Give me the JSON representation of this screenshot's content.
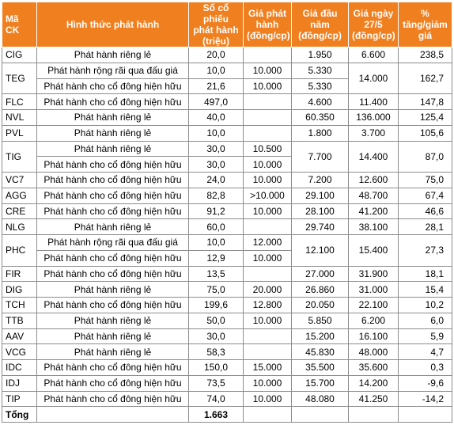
{
  "headers": {
    "code": "Mã CK",
    "method": "Hình thức phát hành",
    "shares": "Số cổ phiếu phát hành (triệu)",
    "issue_price": "Giá phát hành (đồng/cp)",
    "start_price": "Giá đầu năm (đồng/cp)",
    "price_27_5": "Giá ngày 27/5 (đồng/cp)",
    "pct_increase": "% tăng/giảm giá"
  },
  "rows": [
    {
      "code": "CIG",
      "lines": [
        {
          "method": "Phát hành riêng lẻ",
          "shares": "20,0",
          "issue_price": "",
          "start_price": "1.950"
        }
      ],
      "price_27_5": "6.600",
      "pct": "238,5"
    },
    {
      "code": "TEG",
      "lines": [
        {
          "method": "Phát hành rộng rãi qua đấu giá",
          "shares": "10,0",
          "issue_price": "10.000",
          "start_price": "5.330"
        },
        {
          "method": "Phát hành cho cổ đông hiện hữu",
          "shares": "21,6",
          "issue_price": "10.000",
          "start_price": "5.330"
        }
      ],
      "price_27_5": "14.000",
      "pct": "162,7"
    },
    {
      "code": "FLC",
      "lines": [
        {
          "method": "Phát hành cho cổ đông hiện hữu",
          "shares": "497,0",
          "issue_price": "",
          "start_price": "4.600"
        }
      ],
      "price_27_5": "11.400",
      "pct": "147,8"
    },
    {
      "code": "NVL",
      "lines": [
        {
          "method": "Phát hành riêng lẻ",
          "shares": "40,0",
          "issue_price": "",
          "start_price": "60.350"
        }
      ],
      "price_27_5": "136.000",
      "pct": "125,4"
    },
    {
      "code": "PVL",
      "lines": [
        {
          "method": "Phát hành riêng lẻ",
          "shares": "10,0",
          "issue_price": "",
          "start_price": "1.800"
        }
      ],
      "price_27_5": "3.700",
      "pct": "105,6"
    },
    {
      "code": "TIG",
      "lines": [
        {
          "method": "Phát hành riêng lẻ",
          "shares": "30,0",
          "issue_price": "10.500"
        },
        {
          "method": "Phát hành cho cổ đông hiện hữu",
          "shares": "30,0",
          "issue_price": "10.000"
        }
      ],
      "start_price": "7.700",
      "price_27_5": "14.400",
      "pct": "87,0"
    },
    {
      "code": "VC7",
      "lines": [
        {
          "method": "Phát hành cho cổ đông hiện hữu",
          "shares": "24,0",
          "issue_price": "10.000",
          "start_price": "7.200"
        }
      ],
      "price_27_5": "12.600",
      "pct": "75,0"
    },
    {
      "code": "AGG",
      "lines": [
        {
          "method": "Phát hành cho cổ đông hiện hữu",
          "shares": "82,8",
          "issue_price": ">10.000",
          "start_price": "29.100"
        }
      ],
      "price_27_5": "48.700",
      "pct": "67,4"
    },
    {
      "code": "CRE",
      "lines": [
        {
          "method": "Phát hành cho cổ đông hiện hữu",
          "shares": "91,2",
          "issue_price": "10.000",
          "start_price": "28.100"
        }
      ],
      "price_27_5": "41.200",
      "pct": "46,6"
    },
    {
      "code": "NLG",
      "lines": [
        {
          "method": "Phát hành riêng lẻ",
          "shares": "60,0",
          "issue_price": "",
          "start_price": "29.740"
        }
      ],
      "price_27_5": "38.100",
      "pct": "28,1"
    },
    {
      "code": "PHC",
      "lines": [
        {
          "method": "Phát hành rộng rãi qua đấu giá",
          "shares": "10,0",
          "issue_price": "12.000"
        },
        {
          "method": "Phát hành cho cổ đông hiện hữu",
          "shares": "12,9",
          "issue_price": "10.000"
        }
      ],
      "start_price": "12.100",
      "price_27_5": "15.400",
      "pct": "27,3"
    },
    {
      "code": "FIR",
      "lines": [
        {
          "method": "Phát hành cho cổ đông hiện hữu",
          "shares": "13,5",
          "issue_price": "",
          "start_price": "27.000"
        }
      ],
      "price_27_5": "31.900",
      "pct": "18,1"
    },
    {
      "code": "DIG",
      "lines": [
        {
          "method": "Phát hành riêng lẻ",
          "shares": "75,0",
          "issue_price": "20.000",
          "start_price": "26.860"
        }
      ],
      "price_27_5": "31.000",
      "pct": "15,4"
    },
    {
      "code": "TCH",
      "lines": [
        {
          "method": "Phát hành cho cổ đông hiện hữu",
          "shares": "199,6",
          "issue_price": "12.800",
          "start_price": "20.050"
        }
      ],
      "price_27_5": "22.100",
      "pct": "10,2"
    },
    {
      "code": "TTB",
      "lines": [
        {
          "method": "Phát hành riêng lẻ",
          "shares": "50,0",
          "issue_price": "10.000",
          "start_price": "5.850"
        }
      ],
      "price_27_5": "6.200",
      "pct": "6,0"
    },
    {
      "code": "AAV",
      "lines": [
        {
          "method": "Phát hành riêng lẻ",
          "shares": "30,0",
          "issue_price": "",
          "start_price": "15.200"
        }
      ],
      "price_27_5": "16.100",
      "pct": "5,9"
    },
    {
      "code": "VCG",
      "lines": [
        {
          "method": "Phát hành riêng lẻ",
          "shares": "58,3",
          "issue_price": "",
          "start_price": "45.830"
        }
      ],
      "price_27_5": "48.000",
      "pct": "4,7"
    },
    {
      "code": "IDC",
      "lines": [
        {
          "method": "Phát hành cho cổ đông hiện hữu",
          "shares": "150,0",
          "issue_price": "15.000",
          "start_price": "35.500"
        }
      ],
      "price_27_5": "35.600",
      "pct": "0,3"
    },
    {
      "code": "IDJ",
      "lines": [
        {
          "method": "Phát hành cho cổ đông hiện hữu",
          "shares": "73,5",
          "issue_price": "10.000",
          "start_price": "15.700"
        }
      ],
      "price_27_5": "14.200",
      "pct": "-9,6"
    },
    {
      "code": "TIP",
      "lines": [
        {
          "method": "Phát hành cho cổ đông hiện hữu",
          "shares": "74,0",
          "issue_price": "10.000",
          "start_price": "48.080"
        }
      ],
      "price_27_5": "41.250",
      "pct": "-14,2"
    }
  ],
  "total": {
    "label": "Tổng",
    "shares": "1.663"
  }
}
